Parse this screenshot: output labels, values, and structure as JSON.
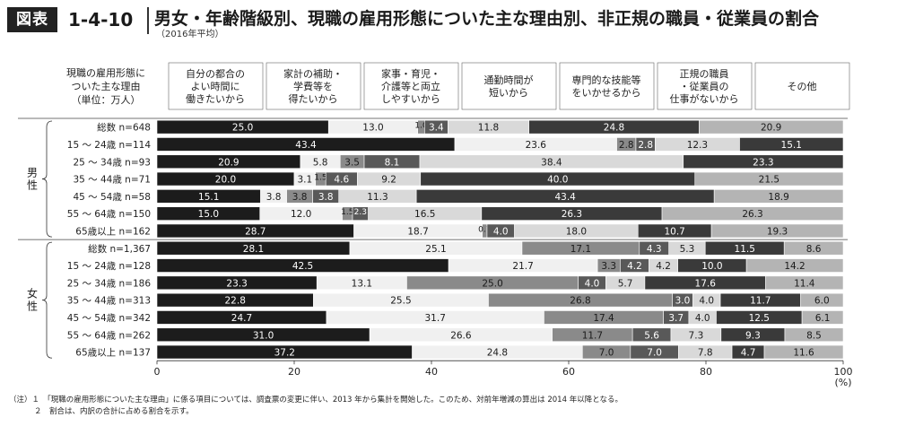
{
  "header": {
    "badge": "図表",
    "figure_number": "1-4-10",
    "title": "男女・年齢階級別、現職の雇用形態についた主な理由別、非正規の職員・従業員の割合",
    "subtitle": "（2016年平均）"
  },
  "row_header": [
    "現職の雇用形態に",
    "ついた主な理由",
    "（単位：万人）"
  ],
  "sex_labels": {
    "male": "男性",
    "female": "女性"
  },
  "notes": [
    "（注）１　「現職の雇用形態についた主な理由」に係る項目については、調査票の変更に伴い、2013 年から集計を開始した。このため、対前年増減の算出は 2014 年以降となる。",
    "２　割合は、内訳の合計に占める割合を示す。"
  ],
  "colors": {
    "c0": "#1c1c1c",
    "c1": "#f0f0f0",
    "c2": "#8a8a8a",
    "c3": "#595959",
    "c4": "#d9d9d9",
    "c5": "#3a3a3a",
    "c6": "#b4b4b4"
  },
  "chart_data": {
    "type": "bar",
    "orientation": "horizontal",
    "stacked": true,
    "xlim": [
      0,
      100
    ],
    "xticks": [
      0,
      20,
      40,
      60,
      80,
      100
    ],
    "xunit": "(%)",
    "categories": [
      "総数 n=648",
      "15 ～ 24歳 n=114",
      "25 ～ 34歳 n=93",
      "35 ～ 44歳 n=71",
      "45 ～ 54歳 n=58",
      "55 ～ 64歳 n=150",
      "65歳以上 n=162",
      "総数 n=1,367",
      "15 ～ 24歳 n=128",
      "25 ～ 34歳 n=186",
      "35 ～ 44歳 n=313",
      "45 ～ 54歳 n=342",
      "55 ～ 64歳 n=262",
      "65歳以上 n=137"
    ],
    "series": [
      {
        "name": "自分の都合のよい時間に働きたいから",
        "header": [
          "自分の都合の",
          "よい時間に",
          "働きたいから"
        ],
        "values": [
          25.0,
          43.4,
          20.9,
          20.0,
          15.1,
          15.0,
          28.7,
          28.1,
          42.5,
          23.3,
          22.8,
          24.7,
          31.0,
          37.2
        ]
      },
      {
        "name": "家計の補助・学費等を得たいから",
        "header": [
          "家計の補助・",
          "学費等を",
          "得たいから"
        ],
        "values": [
          13.0,
          23.6,
          5.8,
          3.1,
          3.8,
          12.0,
          18.7,
          25.1,
          21.7,
          13.1,
          25.5,
          31.7,
          26.6,
          24.8
        ]
      },
      {
        "name": "家事・育児・介護等と両立しやすいから",
        "header": [
          "家事・育児・",
          "介護等と両立",
          "しやすいから"
        ],
        "values": [
          1.0,
          2.8,
          3.5,
          1.5,
          3.8,
          1.5,
          0.7,
          17.1,
          3.3,
          25.0,
          26.8,
          17.4,
          11.7,
          7.0
        ]
      },
      {
        "name": "通勤時間が短いから",
        "header": [
          "通勤時間が",
          "短いから"
        ],
        "values": [
          3.4,
          2.8,
          8.1,
          4.6,
          3.8,
          2.3,
          4.0,
          4.3,
          4.2,
          4.0,
          3.0,
          3.7,
          5.6,
          7.0
        ]
      },
      {
        "name": "専門的な技能等をいかせるから",
        "header": [
          "専門的な技能等",
          "をいかせるから"
        ],
        "values": [
          11.8,
          12.3,
          38.4,
          9.2,
          11.3,
          16.5,
          18.0,
          5.3,
          4.2,
          5.7,
          4.0,
          4.0,
          7.3,
          7.8
        ]
      },
      {
        "name": "正規の職員・従業員の仕事がないから",
        "header": [
          "正規の職員",
          "・従業員の",
          "仕事がないから"
        ],
        "values": [
          24.8,
          15.1,
          23.3,
          40.0,
          43.4,
          26.3,
          10.7,
          11.5,
          10.0,
          17.6,
          11.7,
          12.5,
          9.3,
          4.7
        ]
      },
      {
        "name": "その他",
        "header": [
          "その他"
        ],
        "values": [
          20.9,
          null,
          null,
          21.5,
          18.9,
          26.3,
          19.3,
          8.6,
          14.2,
          11.4,
          6.0,
          6.1,
          8.5,
          11.6
        ]
      }
    ]
  }
}
